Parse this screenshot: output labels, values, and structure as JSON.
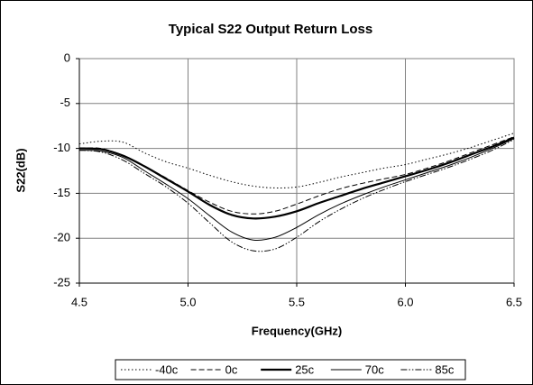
{
  "chart_data": {
    "type": "line",
    "title": "Typical S22 Output Return Loss",
    "xlabel": "Frequency(GHz)",
    "ylabel": "S22(dB)",
    "x": [
      4.5,
      4.6,
      4.7,
      4.8,
      4.9,
      5.0,
      5.1,
      5.2,
      5.3,
      5.4,
      5.5,
      5.6,
      5.7,
      5.8,
      5.9,
      6.0,
      6.1,
      6.2,
      6.3,
      6.4,
      6.5
    ],
    "series": [
      {
        "name": "-40c",
        "color": "#000000",
        "style": "dotted",
        "width": 1,
        "values": [
          -9.5,
          -9.2,
          -9.3,
          -10.5,
          -11.5,
          -12.2,
          -13.0,
          -13.7,
          -14.2,
          -14.4,
          -14.3,
          -13.8,
          -13.2,
          -12.7,
          -12.2,
          -11.8,
          -11.2,
          -10.6,
          -9.9,
          -9.1,
          -8.3
        ]
      },
      {
        "name": "0c",
        "color": "#000000",
        "style": "dashed",
        "width": 1,
        "values": [
          -10.0,
          -10.0,
          -10.8,
          -12.0,
          -13.3,
          -14.7,
          -16.0,
          -17.0,
          -17.3,
          -17.0,
          -16.2,
          -15.3,
          -14.5,
          -13.9,
          -13.4,
          -12.9,
          -12.2,
          -11.4,
          -10.5,
          -9.6,
          -8.7
        ]
      },
      {
        "name": "25c",
        "color": "#000000",
        "style": "solid",
        "width": 2.2,
        "values": [
          -10.0,
          -10.1,
          -10.8,
          -12.0,
          -13.4,
          -14.8,
          -16.3,
          -17.4,
          -17.8,
          -17.6,
          -17.0,
          -16.1,
          -15.3,
          -14.5,
          -13.8,
          -13.1,
          -12.4,
          -11.6,
          -10.7,
          -9.8,
          -8.8
        ]
      },
      {
        "name": "70c",
        "color": "#000000",
        "style": "solid",
        "width": 1,
        "values": [
          -10.2,
          -10.3,
          -11.0,
          -12.5,
          -14.0,
          -15.6,
          -17.5,
          -19.3,
          -20.2,
          -19.9,
          -18.8,
          -17.4,
          -16.2,
          -15.2,
          -14.3,
          -13.5,
          -12.7,
          -11.9,
          -11.0,
          -10.0,
          -8.9
        ]
      },
      {
        "name": "85c",
        "color": "#000000",
        "style": "dashdotdot",
        "width": 1,
        "values": [
          -10.2,
          -10.4,
          -11.3,
          -12.8,
          -14.3,
          -16.1,
          -18.3,
          -20.4,
          -21.4,
          -21.2,
          -19.9,
          -18.2,
          -16.8,
          -15.6,
          -14.6,
          -13.7,
          -12.9,
          -12.1,
          -11.2,
          -10.2,
          -9.0
        ]
      }
    ],
    "xlim": [
      4.5,
      6.5
    ],
    "xticks": [
      4.5,
      {
        "value": 5,
        "label": "5.0"
      },
      5.5,
      {
        "value": 6,
        "label": "6.0"
      },
      6.5
    ],
    "ylim": [
      -25,
      0
    ],
    "yticks": [
      0,
      -5,
      -10,
      -15,
      -20,
      -25
    ],
    "grid": true,
    "legend": "bottom"
  }
}
